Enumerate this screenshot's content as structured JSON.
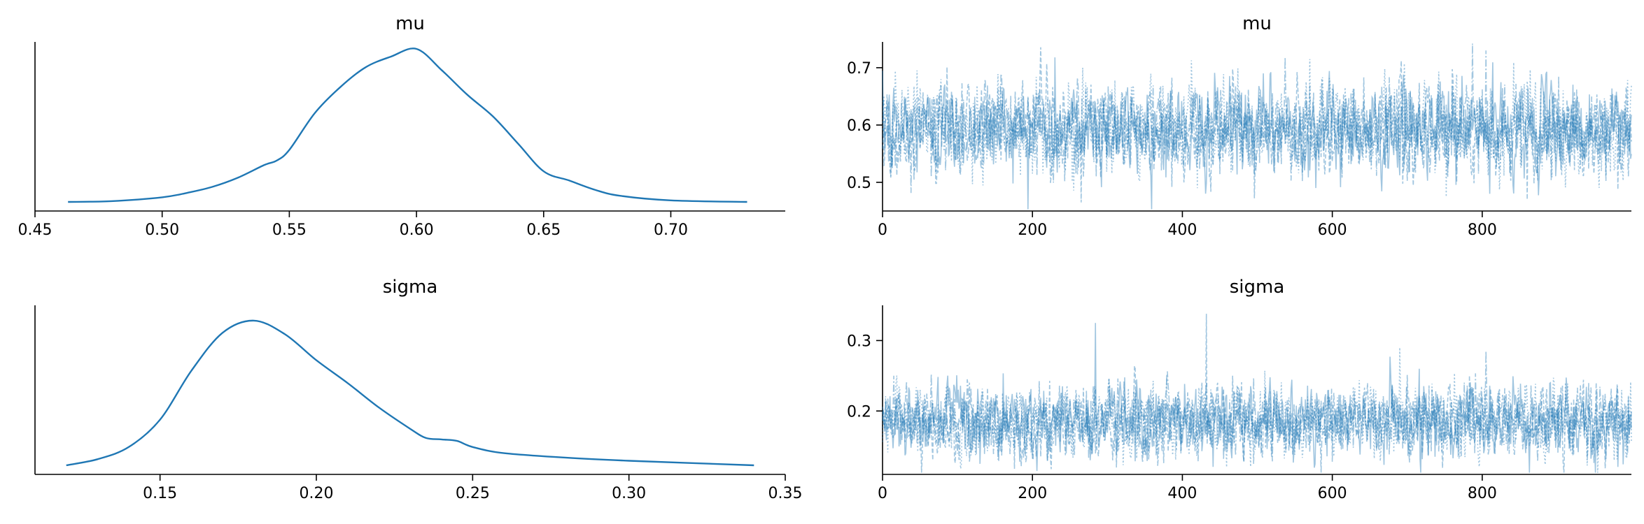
{
  "colors": {
    "kde_line": "#1f77b4",
    "trace_line": "#1f77b4",
    "axis": "#000000",
    "background": "#ffffff"
  },
  "chart_data": [
    {
      "id": "mu_kde",
      "type": "line",
      "title": "mu",
      "xlabel": "",
      "ylabel": "",
      "xlim": [
        0.45,
        0.745
      ],
      "ylim": [
        0,
        1.0
      ],
      "x_ticks": [
        0.45,
        0.5,
        0.55,
        0.6,
        0.65,
        0.7
      ],
      "x_tick_labels": [
        "0.45",
        "0.50",
        "0.55",
        "0.60",
        "0.65",
        "0.70"
      ],
      "y_ticks_visible": false,
      "grid": false,
      "series": [
        {
          "x": [
            0.463,
            0.48,
            0.5,
            0.51,
            0.52,
            0.53,
            0.54,
            0.545,
            0.55,
            0.56,
            0.57,
            0.58,
            0.59,
            0.6,
            0.61,
            0.62,
            0.63,
            0.64,
            0.65,
            0.66,
            0.67,
            0.68,
            0.7,
            0.73
          ],
          "y": [
            0.0,
            0.005,
            0.03,
            0.06,
            0.1,
            0.16,
            0.24,
            0.27,
            0.34,
            0.58,
            0.75,
            0.88,
            0.95,
            1.0,
            0.86,
            0.7,
            0.56,
            0.38,
            0.2,
            0.14,
            0.08,
            0.04,
            0.01,
            0.0
          ]
        }
      ]
    },
    {
      "id": "mu_trace",
      "type": "line",
      "title": "mu",
      "xlabel": "",
      "ylabel": "",
      "xlim": [
        0,
        999
      ],
      "ylim": [
        0.45,
        0.745
      ],
      "x_ticks": [
        0,
        200,
        400,
        600,
        800
      ],
      "x_tick_labels": [
        "0",
        "200",
        "400",
        "600",
        "800"
      ],
      "y_ticks": [
        0.5,
        0.6,
        0.7
      ],
      "y_tick_labels": [
        "0.5",
        "0.6",
        "0.7"
      ],
      "grid": false,
      "n_draws": 1000,
      "n_chains": 4,
      "center": 0.592,
      "spread_sd": 0.037,
      "extremes": [
        {
          "x": 230,
          "y": 0.718
        },
        {
          "x": 265,
          "y": 0.465
        },
        {
          "x": 570,
          "y": 0.715
        },
        {
          "x": 805,
          "y": 0.73
        },
        {
          "x": 810,
          "y": 0.48
        },
        {
          "x": 860,
          "y": 0.47
        },
        {
          "x": 420,
          "y": 0.49
        }
      ]
    },
    {
      "id": "sigma_kde",
      "type": "line",
      "title": "sigma",
      "xlabel": "",
      "ylabel": "",
      "xlim": [
        0.11,
        0.35
      ],
      "ylim": [
        0,
        1.0
      ],
      "x_ticks": [
        0.15,
        0.2,
        0.25,
        0.3,
        0.35
      ],
      "x_tick_labels": [
        "0.15",
        "0.20",
        "0.25",
        "0.30",
        "0.35"
      ],
      "y_ticks_visible": false,
      "grid": false,
      "series": [
        {
          "x": [
            0.12,
            0.13,
            0.14,
            0.15,
            0.16,
            0.17,
            0.18,
            0.19,
            0.2,
            0.21,
            0.22,
            0.23,
            0.235,
            0.24,
            0.245,
            0.25,
            0.26,
            0.28,
            0.3,
            0.34
          ],
          "y": [
            0.0,
            0.04,
            0.12,
            0.3,
            0.62,
            0.87,
            0.95,
            0.86,
            0.69,
            0.54,
            0.38,
            0.24,
            0.18,
            0.17,
            0.16,
            0.12,
            0.08,
            0.05,
            0.03,
            0.0
          ]
        }
      ]
    },
    {
      "id": "sigma_trace",
      "type": "line",
      "title": "sigma",
      "xlabel": "",
      "ylabel": "",
      "xlim": [
        0,
        999
      ],
      "ylim": [
        0.11,
        0.35
      ],
      "x_ticks": [
        0,
        200,
        400,
        600,
        800
      ],
      "x_tick_labels": [
        "0",
        "200",
        "400",
        "600",
        "800"
      ],
      "y_ticks": [
        0.2,
        0.3
      ],
      "y_tick_labels": [
        "0.2",
        "0.3"
      ],
      "grid": false,
      "n_draws": 1000,
      "n_chains": 4,
      "center": 0.185,
      "spread_sd": 0.024,
      "extremes": [
        {
          "x": 284,
          "y": 0.325
        },
        {
          "x": 432,
          "y": 0.338
        },
        {
          "x": 690,
          "y": 0.29
        },
        {
          "x": 805,
          "y": 0.285
        },
        {
          "x": 130,
          "y": 0.125
        },
        {
          "x": 600,
          "y": 0.128
        }
      ]
    }
  ]
}
